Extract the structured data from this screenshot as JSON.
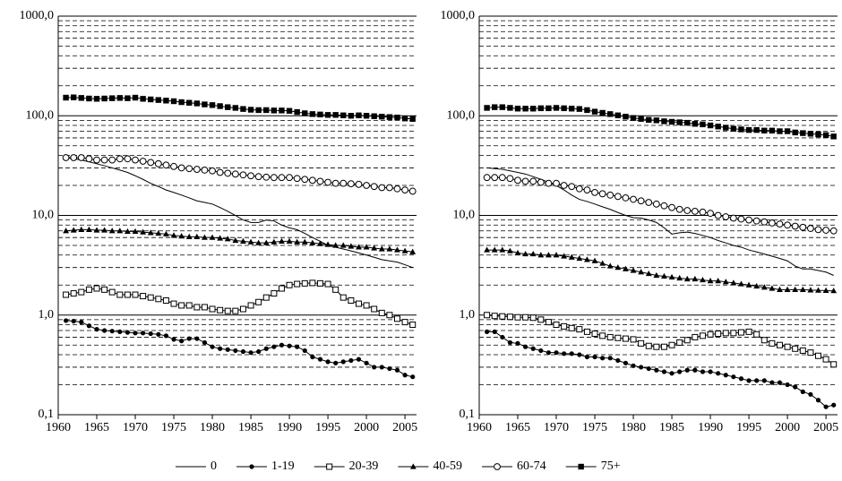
{
  "chart_data": [
    {
      "type": "line",
      "log_y": true,
      "grid": true,
      "x": [
        1961,
        1962,
        1963,
        1964,
        1965,
        1966,
        1967,
        1968,
        1969,
        1970,
        1971,
        1972,
        1973,
        1974,
        1975,
        1976,
        1977,
        1978,
        1979,
        1980,
        1981,
        1982,
        1983,
        1984,
        1985,
        1986,
        1987,
        1988,
        1989,
        1990,
        1991,
        1992,
        1993,
        1994,
        1995,
        1996,
        1997,
        1998,
        1999,
        2000,
        2001,
        2002,
        2003,
        2004,
        2005,
        2006
      ],
      "xlim": [
        1960,
        2006.5
      ],
      "xticks": [
        1960,
        1965,
        1970,
        1975,
        1980,
        1985,
        1990,
        1995,
        2000,
        2005
      ],
      "ylim": [
        0.1,
        1000
      ],
      "yticks": [
        {
          "value": 0.1,
          "label": "0,1"
        },
        {
          "value": 1,
          "label": "1,0"
        },
        {
          "value": 10,
          "label": "10,0"
        },
        {
          "value": 100,
          "label": "100,0"
        },
        {
          "value": 1000,
          "label": "1000,0"
        }
      ],
      "yminor": [
        0.2,
        0.3,
        0.4,
        0.5,
        0.6,
        0.7,
        0.8,
        0.9,
        2,
        3,
        4,
        5,
        6,
        7,
        8,
        9,
        20,
        30,
        40,
        50,
        60,
        70,
        80,
        90,
        200,
        300,
        400,
        500,
        600,
        700,
        800,
        900
      ],
      "series": [
        {
          "name": "0",
          "color": "#000000",
          "marker": "none",
          "values": [
            38,
            37,
            36,
            34.5,
            33,
            31.5,
            30,
            28.5,
            27,
            25,
            23,
            21,
            19.5,
            18,
            17,
            16,
            15,
            14,
            13.5,
            13,
            12,
            11,
            10,
            9,
            8.5,
            8.5,
            9,
            8.8,
            8,
            7.5,
            7.2,
            6.6,
            6,
            5.5,
            5,
            4.8,
            4.6,
            4.4,
            4.2,
            4,
            3.8,
            3.6,
            3.5,
            3.4,
            3.2,
            3
          ]
        },
        {
          "name": "1-19",
          "color": "#000000",
          "marker": "filled-circle",
          "values": [
            0.88,
            0.87,
            0.85,
            0.78,
            0.72,
            0.7,
            0.69,
            0.68,
            0.67,
            0.66,
            0.66,
            0.65,
            0.64,
            0.62,
            0.57,
            0.55,
            0.58,
            0.58,
            0.53,
            0.48,
            0.46,
            0.45,
            0.44,
            0.43,
            0.42,
            0.43,
            0.46,
            0.48,
            0.5,
            0.49,
            0.48,
            0.44,
            0.38,
            0.36,
            0.34,
            0.33,
            0.34,
            0.35,
            0.36,
            0.33,
            0.3,
            0.3,
            0.29,
            0.28,
            0.25,
            0.24
          ]
        },
        {
          "name": "20-39",
          "color": "#000000",
          "marker": "open-square",
          "values": [
            1.6,
            1.65,
            1.7,
            1.8,
            1.85,
            1.8,
            1.7,
            1.6,
            1.6,
            1.6,
            1.55,
            1.5,
            1.45,
            1.4,
            1.3,
            1.25,
            1.25,
            1.2,
            1.2,
            1.15,
            1.12,
            1.1,
            1.1,
            1.15,
            1.25,
            1.35,
            1.5,
            1.65,
            1.85,
            2.0,
            2.05,
            2.08,
            2.1,
            2.08,
            2.05,
            1.8,
            1.5,
            1.4,
            1.3,
            1.25,
            1.15,
            1.05,
            1.0,
            0.92,
            0.85,
            0.8
          ]
        },
        {
          "name": "40-59",
          "color": "#000000",
          "marker": "filled-triangle",
          "values": [
            7.0,
            7.1,
            7.2,
            7.2,
            7.1,
            7.1,
            7.0,
            7.0,
            6.9,
            6.9,
            6.8,
            6.7,
            6.6,
            6.5,
            6.3,
            6.2,
            6.1,
            6.1,
            6.0,
            6.0,
            5.9,
            5.8,
            5.6,
            5.5,
            5.4,
            5.3,
            5.3,
            5.4,
            5.5,
            5.5,
            5.4,
            5.4,
            5.3,
            5.2,
            5.1,
            5.0,
            5.0,
            4.9,
            4.8,
            4.8,
            4.7,
            4.6,
            4.6,
            4.5,
            4.4,
            4.3
          ]
        },
        {
          "name": "60-74",
          "color": "#000000",
          "marker": "open-circle",
          "values": [
            38,
            38,
            38,
            37,
            36,
            36,
            36,
            37,
            37,
            36,
            35,
            34,
            33,
            32,
            31,
            30,
            29.5,
            29,
            28.5,
            28,
            27,
            26.5,
            26,
            25.5,
            25,
            24.5,
            24.2,
            24,
            24,
            24,
            23.5,
            23,
            22.5,
            22,
            21.5,
            21,
            21,
            20.8,
            20.5,
            20,
            19.5,
            19,
            19,
            18.5,
            18,
            17.5
          ]
        },
        {
          "name": "75+",
          "color": "#000000",
          "marker": "filled-square",
          "values": [
            152,
            153,
            151,
            149,
            148,
            149,
            150,
            151,
            150,
            152,
            148,
            146,
            144,
            142,
            140,
            137,
            135,
            133,
            130,
            128,
            125,
            122,
            120,
            117,
            115,
            114,
            114,
            113,
            113,
            112,
            109,
            106,
            104,
            103,
            102,
            102,
            101,
            100,
            101,
            100,
            99,
            98,
            97,
            96,
            94,
            93
          ]
        }
      ]
    },
    {
      "type": "line",
      "log_y": true,
      "grid": true,
      "x": [
        1961,
        1962,
        1963,
        1964,
        1965,
        1966,
        1967,
        1968,
        1969,
        1970,
        1971,
        1972,
        1973,
        1974,
        1975,
        1976,
        1977,
        1978,
        1979,
        1980,
        1981,
        1982,
        1983,
        1984,
        1985,
        1986,
        1987,
        1988,
        1989,
        1990,
        1991,
        1992,
        1993,
        1994,
        1995,
        1996,
        1997,
        1998,
        1999,
        2000,
        2001,
        2002,
        2003,
        2004,
        2005,
        2006
      ],
      "xlim": [
        1960,
        2006.5
      ],
      "xticks": [
        1960,
        1965,
        1970,
        1975,
        1980,
        1985,
        1990,
        1995,
        2000,
        2005
      ],
      "ylim": [
        0.1,
        1000
      ],
      "yticks": [
        {
          "value": 0.1,
          "label": "0,1"
        },
        {
          "value": 1,
          "label": "1,0"
        },
        {
          "value": 10,
          "label": "10,0"
        },
        {
          "value": 100,
          "label": "100,0"
        },
        {
          "value": 1000,
          "label": "1000,0"
        }
      ],
      "yminor": [
        0.2,
        0.3,
        0.4,
        0.5,
        0.6,
        0.7,
        0.8,
        0.9,
        2,
        3,
        4,
        5,
        6,
        7,
        8,
        9,
        20,
        30,
        40,
        50,
        60,
        70,
        80,
        90,
        200,
        300,
        400,
        500,
        600,
        700,
        800,
        900
      ],
      "series": [
        {
          "name": "0",
          "color": "#000000",
          "marker": "none",
          "values": [
            30,
            29.5,
            29,
            28,
            27,
            26,
            24.5,
            23,
            21.5,
            20,
            18,
            16,
            14.5,
            13.8,
            13,
            12.2,
            11.5,
            10.7,
            10,
            9.5,
            9.4,
            9,
            8.5,
            7.5,
            6.5,
            6.7,
            6.8,
            6.6,
            6.3,
            6,
            5.6,
            5.3,
            5,
            4.8,
            4.5,
            4.3,
            4.1,
            3.9,
            3.7,
            3.5,
            3.1,
            2.9,
            2.9,
            2.8,
            2.7,
            2.5
          ]
        },
        {
          "name": "1-19",
          "color": "#000000",
          "marker": "filled-circle",
          "values": [
            0.68,
            0.68,
            0.6,
            0.53,
            0.52,
            0.48,
            0.46,
            0.44,
            0.42,
            0.42,
            0.41,
            0.41,
            0.4,
            0.38,
            0.38,
            0.37,
            0.37,
            0.35,
            0.33,
            0.31,
            0.3,
            0.29,
            0.28,
            0.27,
            0.26,
            0.27,
            0.28,
            0.28,
            0.27,
            0.27,
            0.26,
            0.25,
            0.24,
            0.23,
            0.22,
            0.22,
            0.22,
            0.21,
            0.21,
            0.2,
            0.19,
            0.17,
            0.16,
            0.14,
            0.12,
            0.125
          ]
        },
        {
          "name": "20-39",
          "color": "#000000",
          "marker": "open-square",
          "values": [
            1.0,
            0.98,
            0.97,
            0.96,
            0.95,
            0.95,
            0.94,
            0.9,
            0.85,
            0.8,
            0.77,
            0.74,
            0.72,
            0.68,
            0.65,
            0.62,
            0.6,
            0.59,
            0.58,
            0.57,
            0.52,
            0.49,
            0.48,
            0.48,
            0.5,
            0.53,
            0.56,
            0.6,
            0.62,
            0.64,
            0.65,
            0.66,
            0.66,
            0.67,
            0.68,
            0.64,
            0.56,
            0.52,
            0.5,
            0.48,
            0.46,
            0.44,
            0.42,
            0.39,
            0.36,
            0.32
          ]
        },
        {
          "name": "40-59",
          "color": "#000000",
          "marker": "filled-triangle",
          "values": [
            4.5,
            4.5,
            4.5,
            4.4,
            4.2,
            4.1,
            4.1,
            4.0,
            4.0,
            4.0,
            3.9,
            3.8,
            3.7,
            3.6,
            3.5,
            3.3,
            3.1,
            3.0,
            2.9,
            2.8,
            2.7,
            2.6,
            2.5,
            2.45,
            2.4,
            2.35,
            2.3,
            2.3,
            2.25,
            2.2,
            2.2,
            2.15,
            2.1,
            2.05,
            2.0,
            1.95,
            1.9,
            1.85,
            1.8,
            1.8,
            1.8,
            1.8,
            1.78,
            1.77,
            1.76,
            1.75
          ]
        },
        {
          "name": "60-74",
          "color": "#000000",
          "marker": "open-circle",
          "values": [
            24,
            24,
            24,
            23.5,
            22.5,
            22,
            22,
            21.5,
            21,
            21,
            20,
            19.5,
            18.5,
            18,
            17,
            16.5,
            16,
            15.5,
            15,
            14.5,
            14,
            13.5,
            13,
            12.5,
            12,
            11.5,
            11.2,
            11,
            10.8,
            10.5,
            10,
            9.7,
            9.4,
            9.2,
            9,
            8.8,
            8.6,
            8.4,
            8.2,
            8,
            7.8,
            7.6,
            7.4,
            7.2,
            7.1,
            7
          ]
        },
        {
          "name": "75+",
          "color": "#000000",
          "marker": "filled-square",
          "values": [
            120,
            122,
            122,
            120,
            118,
            118,
            118,
            119,
            119,
            120,
            119,
            118,
            117,
            114,
            110,
            107,
            104,
            101,
            98,
            95,
            93,
            91,
            90,
            88,
            87,
            86,
            85,
            83,
            82,
            80,
            78,
            76,
            74,
            73,
            72,
            72,
            71,
            71,
            70,
            70,
            68,
            67,
            66,
            65,
            64,
            62
          ]
        }
      ]
    }
  ]
}
